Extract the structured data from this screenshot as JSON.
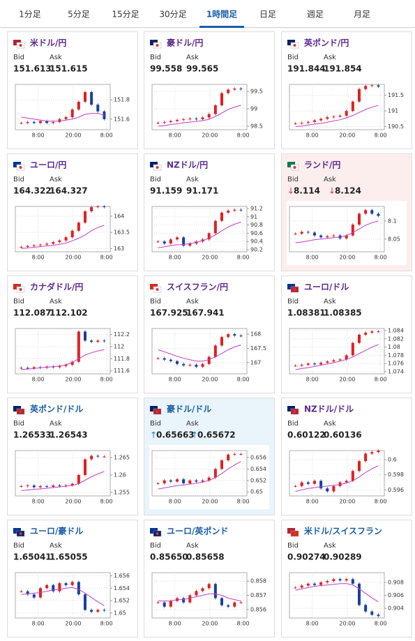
{
  "tabs": [
    "1分足",
    "5分足",
    "15分足",
    "30分足",
    "1時間足",
    "日足",
    "週足",
    "月足"
  ],
  "active_tab": 4,
  "bid_label": "Bid",
  "ask_label": "Ask",
  "cards": [
    {
      "pair": "米ドル/円",
      "title_color": "#5c2a8e",
      "bid": "151.613",
      "ask": "151.615",
      "chart": {
        "ylim": [
          151.49,
          151.96
        ],
        "yticks": [
          151.8,
          151.6
        ],
        "xticks": [
          "8:00",
          "20:00",
          "8:00"
        ],
        "prices": [
          151.56,
          151.57,
          151.56,
          151.58,
          151.56,
          151.57,
          151.6,
          151.62,
          151.7,
          151.78,
          151.88,
          151.75,
          151.68,
          151.6
        ],
        "ma": [
          151.62,
          151.61,
          151.6,
          151.59,
          151.58,
          151.58,
          151.58,
          151.59,
          151.6,
          151.62,
          151.65,
          151.66,
          151.66,
          151.64
        ]
      }
    },
    {
      "pair": "豪ドル/円",
      "title_color": "#5c2a8e",
      "bid": "99.558",
      "ask": "99.565",
      "chart": {
        "ylim": [
          98.4,
          99.7
        ],
        "yticks": [
          99.5,
          99,
          98.5
        ],
        "xticks": [
          "8:00",
          "20:00",
          "8:00"
        ],
        "prices": [
          98.6,
          98.62,
          98.65,
          98.68,
          98.7,
          98.72,
          98.7,
          98.75,
          98.85,
          99.1,
          99.45,
          99.55,
          99.58,
          99.56
        ],
        "ma": [
          98.5,
          98.52,
          98.55,
          98.57,
          98.6,
          98.62,
          98.64,
          98.66,
          98.7,
          98.78,
          98.88,
          98.98,
          99.05,
          99.1
        ]
      }
    },
    {
      "pair": "英ポンド/円",
      "title_color": "#5c2a8e",
      "bid": "191.844",
      "ask": "191.854",
      "chart": {
        "ylim": [
          190.4,
          191.85
        ],
        "yticks": [
          191.5,
          191,
          190.5
        ],
        "xticks": [
          "8:00",
          "20:00",
          "8:00"
        ],
        "prices": [
          190.6,
          190.62,
          190.65,
          190.7,
          190.75,
          190.8,
          190.82,
          190.85,
          191.0,
          191.3,
          191.7,
          191.8,
          191.82,
          191.78
        ],
        "ma": [
          190.5,
          190.52,
          190.55,
          190.58,
          190.6,
          190.64,
          190.68,
          190.72,
          190.78,
          190.86,
          190.95,
          191.05,
          191.12,
          191.18
        ]
      }
    },
    {
      "pair": "ユーロ/円",
      "title_color": "#5c2a8e",
      "bid": "164.322",
      "ask": "164.327",
      "chart": {
        "ylim": [
          162.9,
          164.3
        ],
        "yticks": [
          164,
          163.5,
          163
        ],
        "xticks": [
          "8:00",
          "20:00",
          "8:00"
        ],
        "prices": [
          163.05,
          163.08,
          163.1,
          163.12,
          163.15,
          163.2,
          163.25,
          163.35,
          163.55,
          163.8,
          164.15,
          164.28,
          164.3,
          164.28
        ],
        "ma": [
          163,
          163.02,
          163.04,
          163.06,
          163.08,
          163.1,
          163.13,
          163.17,
          163.24,
          163.32,
          163.42,
          163.55,
          163.65,
          163.72
        ]
      }
    },
    {
      "pair": "NZドル/円",
      "title_color": "#5c2a8e",
      "bid": "91.159",
      "ask": "91.171",
      "chart": {
        "ylim": [
          90.15,
          91.25
        ],
        "yticks": [
          91.2,
          91,
          90.8,
          90.6,
          90.4,
          90.2
        ],
        "xticks": [
          "8:00",
          "20:00",
          "8:00"
        ],
        "prices": [
          90.4,
          90.35,
          90.45,
          90.5,
          90.3,
          90.35,
          90.4,
          90.45,
          90.6,
          90.9,
          91.1,
          91.15,
          91.17,
          91.16
        ],
        "ma": [
          90.25,
          90.27,
          90.3,
          90.32,
          90.33,
          90.35,
          90.38,
          90.42,
          90.48,
          90.56,
          90.66,
          90.75,
          90.82,
          90.87
        ]
      }
    },
    {
      "pair": "ランド/円",
      "title_color": "#5c2a8e",
      "highlight": "#fdeeee",
      "bid_mark": "↓",
      "ask_mark": "↓",
      "mark_color": "#d33",
      "bid": "8.114",
      "ask": "8.124",
      "chart": {
        "ylim": [
          8.015,
          8.14
        ],
        "yticks": [
          8.1,
          8.05
        ],
        "xticks": [
          "8:00",
          "20:00",
          "8:00"
        ],
        "prices": [
          8.065,
          8.07,
          8.068,
          8.06,
          8.055,
          8.058,
          8.06,
          8.052,
          8.06,
          8.09,
          8.12,
          8.13,
          8.12,
          8.114
        ],
        "ma": [
          8.04,
          8.042,
          8.045,
          8.048,
          8.05,
          8.052,
          8.054,
          8.056,
          8.06,
          8.068,
          8.078,
          8.088,
          8.095,
          8.1
        ]
      }
    },
    {
      "pair": "カナダドル/円",
      "title_color": "#5c2a8e",
      "bid": "112.087",
      "ask": "112.102",
      "chart": {
        "ylim": [
          111.55,
          112.3
        ],
        "yticks": [
          112.2,
          112,
          111.8,
          111.6
        ],
        "xticks": [
          "8:00",
          "20:00",
          "8:00"
        ],
        "prices": [
          111.65,
          111.64,
          111.66,
          111.65,
          111.67,
          111.66,
          111.68,
          111.7,
          111.75,
          112.25,
          112.1,
          112.08,
          112.1,
          112.09
        ],
        "ma": [
          111.62,
          111.63,
          111.64,
          111.65,
          111.66,
          111.67,
          111.68,
          111.7,
          111.74,
          111.8,
          111.86,
          111.9,
          111.93,
          111.95
        ]
      }
    },
    {
      "pair": "スイスフラン/円",
      "title_color": "#5c2a8e",
      "bid": "167.925",
      "ask": "167.941",
      "chart": {
        "ylim": [
          166.6,
          168.2
        ],
        "yticks": [
          168,
          167.5,
          167
        ],
        "xticks": [
          "8:00",
          "20:00",
          "8:00"
        ],
        "prices": [
          167.15,
          167.1,
          167.05,
          166.95,
          166.9,
          166.92,
          166.85,
          166.95,
          167.2,
          167.6,
          167.9,
          168.0,
          167.95,
          167.94
        ],
        "ma": [
          167.45,
          167.38,
          167.3,
          167.22,
          167.15,
          167.1,
          167.05,
          167.05,
          167.1,
          167.2,
          167.32,
          167.45,
          167.55,
          167.62
        ]
      }
    },
    {
      "pair": "ユーロ/ドル",
      "title_color": "#5c2a8e",
      "bid": "1.08381",
      "ask": "1.08385",
      "chart": {
        "ylim": [
          1.0735,
          1.0845
        ],
        "yticks": [
          1.084,
          1.082,
          1.08,
          1.078,
          1.076,
          1.074
        ],
        "xticks": [
          "8:00",
          "20:00",
          "8:00"
        ],
        "prices": [
          1.0755,
          1.0757,
          1.076,
          1.0758,
          1.0762,
          1.0765,
          1.0768,
          1.077,
          1.078,
          1.081,
          1.083,
          1.0835,
          1.0838,
          1.0838
        ],
        "ma": [
          1.0745,
          1.0748,
          1.075,
          1.0753,
          1.0756,
          1.0759,
          1.0762,
          1.0766,
          1.077,
          1.0776,
          1.0784,
          1.0792,
          1.08,
          1.0806
        ]
      }
    },
    {
      "pair": "英ポンド/ドル",
      "title_color": "#1a5ea8",
      "bid": "1.26533",
      "ask": "1.26543",
      "chart": {
        "ylim": [
          1.254,
          1.267
        ],
        "yticks": [
          1.265,
          1.26,
          1.255
        ],
        "xticks": [
          "8:00",
          "20:00",
          "8:00"
        ],
        "prices": [
          1.2568,
          1.257,
          1.2565,
          1.2568,
          1.2566,
          1.257,
          1.2568,
          1.257,
          1.2575,
          1.26,
          1.2645,
          1.2655,
          1.2653,
          1.2653
        ],
        "ma": [
          1.2555,
          1.2557,
          1.2559,
          1.256,
          1.2562,
          1.2564,
          1.2566,
          1.2568,
          1.257,
          1.2575,
          1.2585,
          1.2595,
          1.2603,
          1.261
        ]
      }
    },
    {
      "pair": "豪ドル/ドル",
      "title_color": "#1a5ea8",
      "highlight": "#e9f4fb",
      "bid_mark": "↑",
      "ask_mark": "↑",
      "mark_color": "#1a7fc0",
      "bid": "0.65663",
      "ask": "0.65672",
      "chart": {
        "ylim": [
          0.6493,
          0.6572
        ],
        "yticks": [
          0.656,
          0.654,
          0.652,
          0.65
        ],
        "xticks": [
          "8:00",
          "20:00",
          "8:00"
        ],
        "prices": [
          0.6515,
          0.652,
          0.6518,
          0.6522,
          0.6515,
          0.652,
          0.6518,
          0.652,
          0.6525,
          0.654,
          0.6555,
          0.6565,
          0.6566,
          0.6566
        ],
        "ma": [
          0.6505,
          0.6507,
          0.6509,
          0.6511,
          0.6512,
          0.6514,
          0.6515,
          0.6517,
          0.652,
          0.6525,
          0.6532,
          0.654,
          0.6547,
          0.6553
        ]
      }
    },
    {
      "pair": "NZドル/ドル",
      "title_color": "#5c2a8e",
      "bid": "0.60122",
      "ask": "0.60136",
      "chart": {
        "ylim": [
          0.5952,
          0.6012
        ],
        "yticks": [
          0.6,
          0.598,
          0.596
        ],
        "xticks": [
          "8:00",
          "20:00",
          "8:00"
        ],
        "prices": [
          0.5965,
          0.597,
          0.5968,
          0.5972,
          0.5962,
          0.5958,
          0.5965,
          0.597,
          0.5972,
          0.5985,
          0.5998,
          0.6008,
          0.601,
          0.6012
        ],
        "ma": [
          0.5958,
          0.596,
          0.5962,
          0.5963,
          0.5964,
          0.5965,
          0.5966,
          0.5967,
          0.5969,
          0.5972,
          0.5977,
          0.5983,
          0.5988,
          0.5992
        ]
      }
    },
    {
      "pair": "ユーロ/豪ドル",
      "title_color": "#1a5ea8",
      "bid": "1.65041",
      "ask": "1.65055",
      "chart": {
        "ylim": [
          1.6492,
          1.6565
        ],
        "yticks": [
          1.656,
          1.654,
          1.652,
          1.65
        ],
        "xticks": [
          "8:00",
          "20:00",
          "8:00"
        ],
        "prices": [
          1.6535,
          1.653,
          1.6525,
          1.654,
          1.6545,
          1.6535,
          1.6548,
          1.6545,
          1.655,
          1.653,
          1.6505,
          1.6502,
          1.6505,
          1.6504
        ],
        "ma": [
          1.653,
          1.6531,
          1.6532,
          1.6533,
          1.6535,
          1.6537,
          1.6538,
          1.654,
          1.6541,
          1.6538,
          1.6532,
          1.6525,
          1.6518,
          1.6512
        ]
      }
    },
    {
      "pair": "ユーロ/英ポンド",
      "title_color": "#1a5ea8",
      "bid": "0.85650",
      "ask": "0.85658",
      "chart": {
        "ylim": [
          0.8554,
          0.8586
        ],
        "yticks": [
          0.858,
          0.857,
          0.856
        ],
        "xticks": [
          "8:00",
          "20:00",
          "8:00"
        ],
        "prices": [
          0.8565,
          0.8562,
          0.8566,
          0.8568,
          0.8565,
          0.857,
          0.8573,
          0.8575,
          0.8578,
          0.8568,
          0.8563,
          0.8562,
          0.8565,
          0.8565
        ],
        "ma": [
          0.8566,
          0.8566,
          0.8566,
          0.8567,
          0.8567,
          0.8568,
          0.8569,
          0.857,
          0.8571,
          0.8571,
          0.857,
          0.8568,
          0.8567,
          0.8566
        ]
      }
    },
    {
      "pair": "米ドル/スイスフラン",
      "title_color": "#1a5ea8",
      "bid": "0.90274",
      "ask": "0.90289",
      "chart": {
        "ylim": [
          0.9025,
          0.9095
        ],
        "yticks": [
          0.908,
          0.906,
          0.904
        ],
        "xticks": [
          "8:00",
          "20:00",
          "8:00"
        ],
        "prices": [
          0.9072,
          0.9075,
          0.9078,
          0.9076,
          0.908,
          0.9082,
          0.9085,
          0.9083,
          0.9085,
          0.9078,
          0.9045,
          0.9035,
          0.903,
          0.9028
        ],
        "ma": [
          0.9068,
          0.907,
          0.9072,
          0.9074,
          0.9075,
          0.9076,
          0.9077,
          0.9078,
          0.9078,
          0.9076,
          0.907,
          0.9063,
          0.9056,
          0.905
        ]
      }
    }
  ]
}
